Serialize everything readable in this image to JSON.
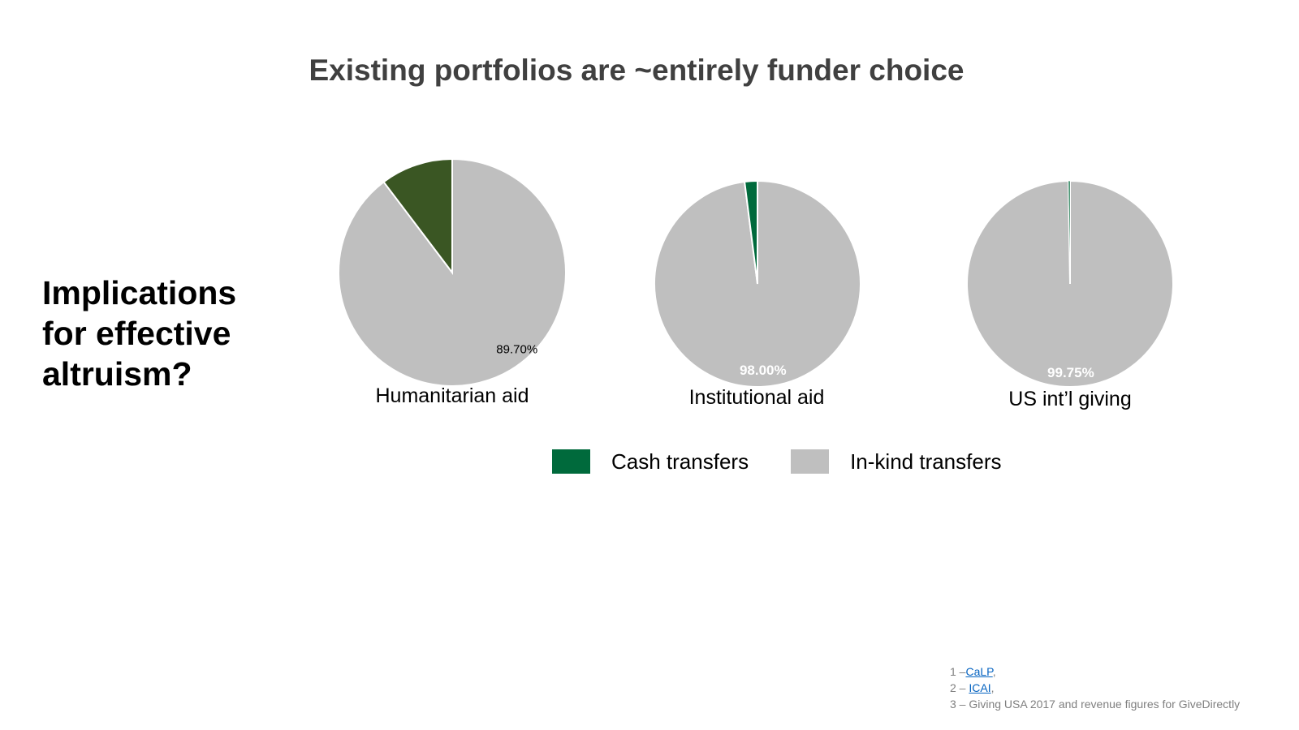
{
  "title": "Existing portfolios are ~entirely funder choice",
  "side_question": "Implications for effective altruism?",
  "legend": [
    {
      "label": "Cash transfers",
      "color": "#006a3c"
    },
    {
      "label": "In-kind transfers",
      "color": "#bfbfbf"
    }
  ],
  "footnotes": [
    {
      "prefix": "1 –",
      "link": "CaLP",
      "suffix": ","
    },
    {
      "prefix": "2 – ",
      "link": "ICAI",
      "suffix": ","
    },
    {
      "prefix": "3 – Giving USA 2017 and revenue figures for GiveDirectly",
      "link": "",
      "suffix": ""
    }
  ],
  "chart_data": [
    {
      "type": "pie",
      "title": "Humanitarian aid",
      "slices": [
        {
          "name": "Cash transfers",
          "value": 10.3,
          "color": "#3a5623"
        },
        {
          "name": "In-kind transfers",
          "value": 89.7,
          "color": "#bfbfbf",
          "label": "89.70%"
        }
      ]
    },
    {
      "type": "pie",
      "title": "Institutional aid",
      "slices": [
        {
          "name": "Cash transfers",
          "value": 2.0,
          "color": "#006a3c"
        },
        {
          "name": "In-kind transfers",
          "value": 98.0,
          "color": "#bfbfbf",
          "label": "98.00%"
        }
      ]
    },
    {
      "type": "pie",
      "title": "US int’l giving",
      "slices": [
        {
          "name": "Cash transfers",
          "value": 0.25,
          "color": "#006a3c"
        },
        {
          "name": "In-kind transfers",
          "value": 99.75,
          "color": "#bfbfbf",
          "label": "99.75%"
        }
      ]
    }
  ]
}
